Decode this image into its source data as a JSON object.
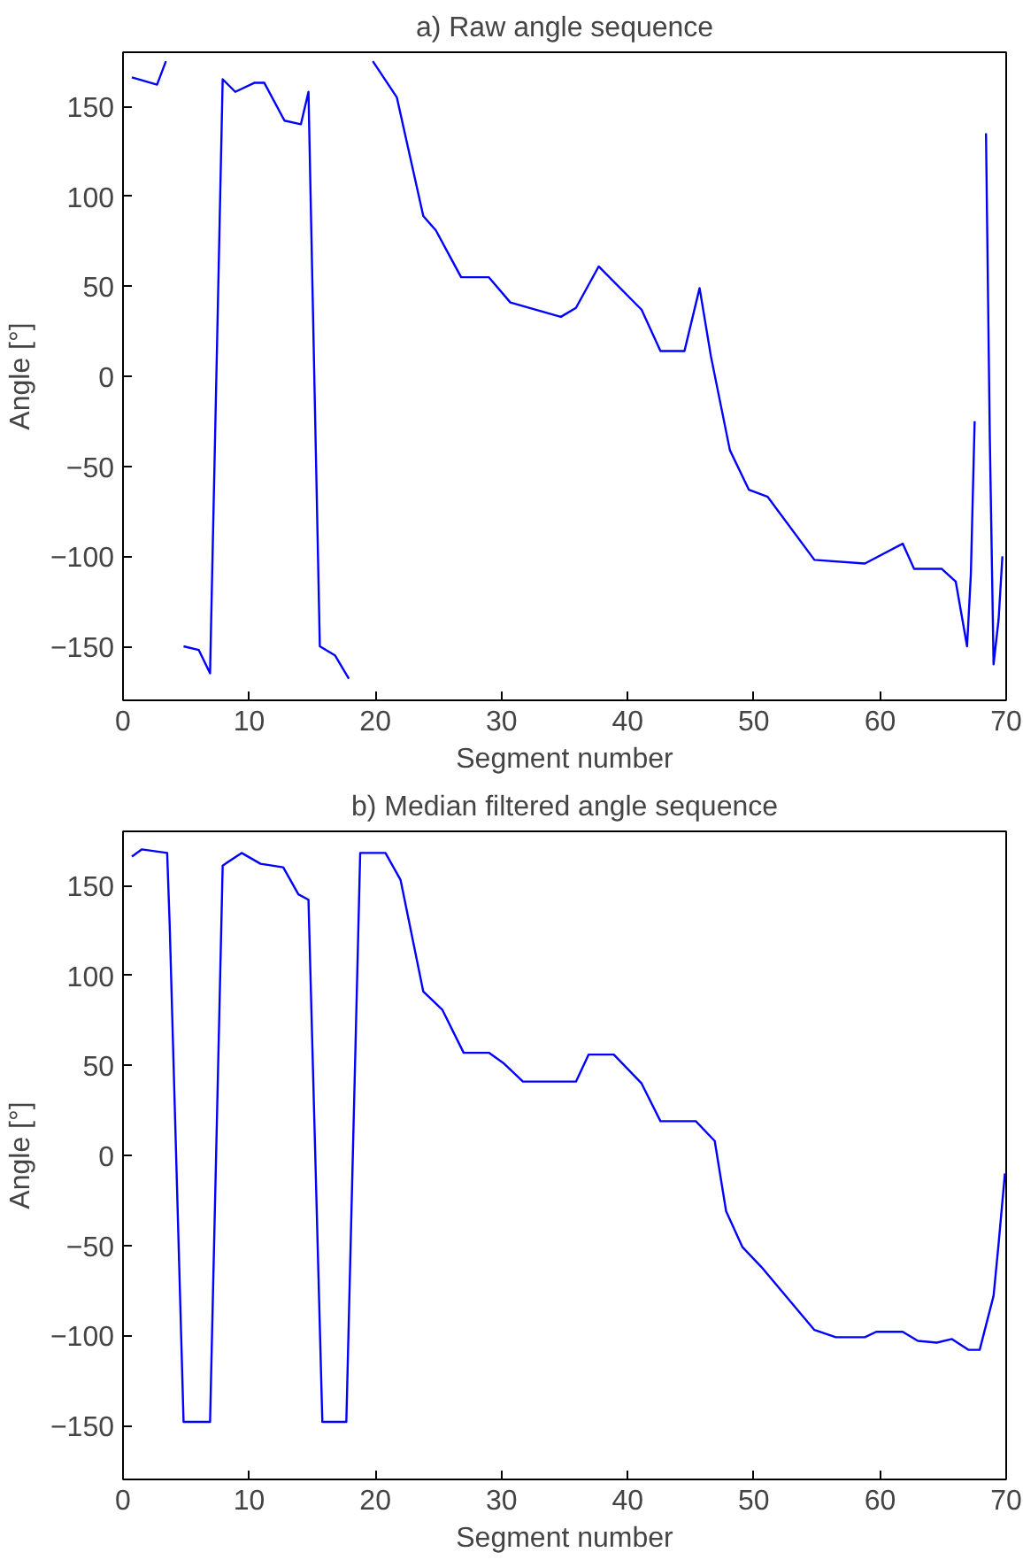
{
  "chart_data": [
    {
      "type": "line",
      "title": "a) Raw angle sequence",
      "xlabel": "Segment number",
      "ylabel": "Angle [°]",
      "xlim": [
        0,
        70
      ],
      "ylim": [
        -180,
        180
      ],
      "xticks": [
        0,
        10,
        20,
        30,
        40,
        50,
        60,
        70
      ],
      "yticks": [
        -150,
        -100,
        -50,
        0,
        50,
        100,
        150
      ],
      "grid": false,
      "series": [
        {
          "color": "#0000ff",
          "x": [
            0.7,
            2.7,
            3.4,
            3.8,
            4.8,
            6.0,
            6.9,
            7.9,
            8.9,
            10.4,
            11.2,
            12.8,
            14.1,
            14.7,
            15.6,
            16.8,
            17.9,
            18.8,
            19.8,
            21.7,
            23.8,
            24.8,
            26.8,
            29.0,
            30.7,
            34.7,
            35.9,
            37.7,
            41.1,
            42.6,
            44.5,
            45.7,
            46.6,
            48.1,
            49.6,
            51.1,
            54.8,
            58.8,
            61.8,
            62.7,
            64.9,
            66.0,
            66.9,
            67.2,
            67.5,
            67.9,
            68.4,
            68.7,
            69.0,
            69.4,
            69.7
          ],
          "values": [
            166,
            162,
            175,
            null,
            -150,
            -152,
            -165,
            165,
            158,
            163,
            163,
            142,
            140,
            158,
            -150,
            -155,
            -168,
            null,
            175,
            155,
            89,
            81,
            55,
            55,
            41,
            33,
            38,
            61,
            37,
            14,
            14,
            49,
            11,
            -41,
            -63,
            -67,
            -102,
            -104,
            -93,
            -107,
            -107,
            -114,
            -150,
            -110,
            -25,
            null,
            135,
            -33,
            -160,
            -135,
            -100
          ]
        }
      ]
    },
    {
      "type": "line",
      "title": "b) Median filtered angle sequence",
      "xlabel": "Segment number",
      "ylabel": "Angle [°]",
      "xlim": [
        0,
        70
      ],
      "ylim": [
        -180,
        180
      ],
      "xticks": [
        0,
        10,
        20,
        30,
        40,
        50,
        60,
        70
      ],
      "yticks": [
        -150,
        -100,
        -50,
        0,
        50,
        100,
        150
      ],
      "grid": false,
      "series": [
        {
          "color": "#0000ff",
          "x": [
            0.7,
            1.5,
            3.5,
            3.7,
            4.8,
            6.9,
            7.9,
            9.4,
            10.9,
            12.7,
            13.9,
            14.7,
            15.8,
            17.7,
            18.8,
            20.8,
            22.0,
            23.8,
            25.3,
            27.0,
            29.0,
            30.2,
            31.7,
            35.9,
            36.9,
            38.9,
            41.1,
            42.6,
            45.4,
            46.9,
            47.8,
            49.1,
            50.6,
            54.8,
            56.5,
            58.8,
            59.7,
            61.8,
            63.0,
            64.5,
            65.7,
            67.0,
            67.9,
            69.0,
            69.4,
            69.9
          ],
          "values": [
            166,
            170,
            168,
            128,
            -148,
            -148,
            161,
            168,
            162,
            160,
            145,
            142,
            -148,
            -148,
            168,
            168,
            153,
            91,
            81,
            57,
            57,
            51,
            41,
            41,
            56,
            56,
            40,
            19,
            19,
            8,
            -31,
            -51,
            -62,
            -97,
            -101,
            -101,
            -98,
            -98,
            -103,
            -104,
            -102,
            -108,
            -108,
            -78,
            -49,
            -10
          ]
        }
      ]
    }
  ]
}
